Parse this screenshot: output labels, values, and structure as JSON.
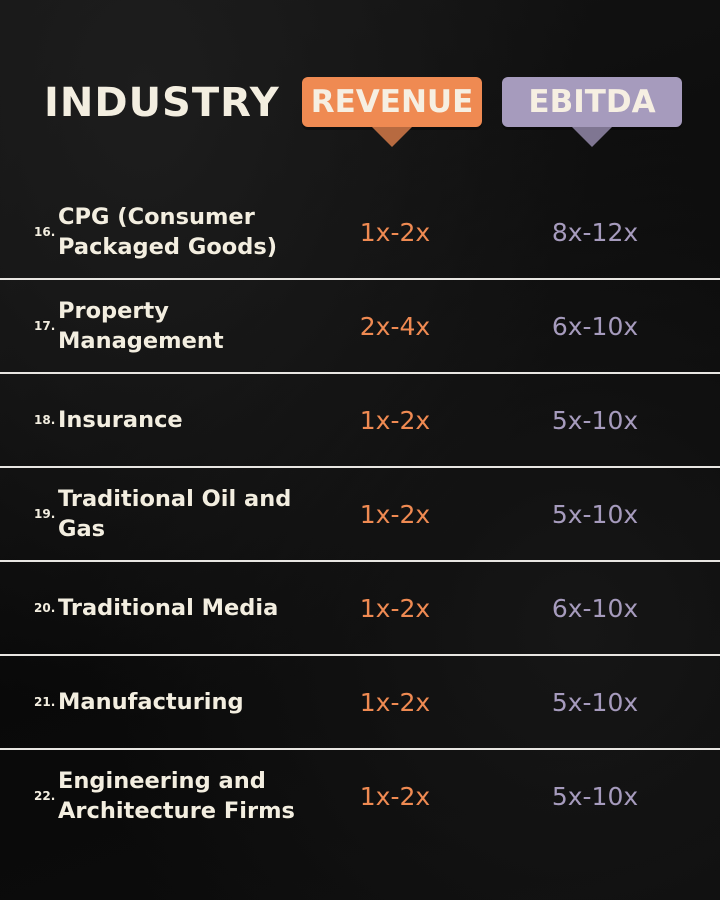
{
  "header": {
    "industry_label": "INDUSTRY",
    "revenue_label": "REVENUE",
    "ebitda_label": "EBITDA"
  },
  "colors": {
    "revenue": "#ef8a52",
    "ebitda": "#a69bbd",
    "text": "#f3eee0",
    "background": "#0b0b0b"
  },
  "rows": [
    {
      "num": "16.",
      "industry": "CPG (Consumer Packaged Goods)",
      "revenue": "1x-2x",
      "ebitda": "8x-12x"
    },
    {
      "num": "17.",
      "industry": "Property Management",
      "revenue": "2x-4x",
      "ebitda": "6x-10x"
    },
    {
      "num": "18.",
      "industry": "Insurance",
      "revenue": "1x-2x",
      "ebitda": "5x-10x"
    },
    {
      "num": "19.",
      "industry": "Traditional Oil and Gas",
      "revenue": "1x-2x",
      "ebitda": "5x-10x"
    },
    {
      "num": "20.",
      "industry": "Traditional Media",
      "revenue": "1x-2x",
      "ebitda": "6x-10x"
    },
    {
      "num": "21.",
      "industry": "Manufacturing",
      "revenue": "1x-2x",
      "ebitda": "5x-10x"
    },
    {
      "num": "22.",
      "industry": "Engineering and Architecture Firms",
      "revenue": "1x-2x",
      "ebitda": "5x-10x"
    }
  ]
}
